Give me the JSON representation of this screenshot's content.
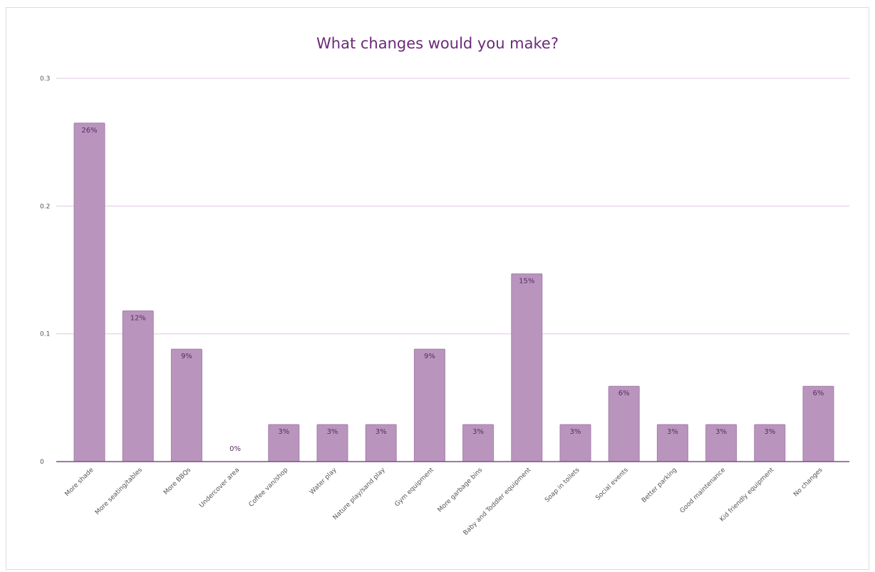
{
  "chart_data": {
    "type": "bar",
    "title": "What changes would you make?",
    "xlabel": "",
    "ylabel": "",
    "ylim": [
      0,
      0.3
    ],
    "yticks": [
      {
        "value": 0,
        "label": "0"
      },
      {
        "value": 0.1,
        "label": "0.1"
      },
      {
        "value": 0.2,
        "label": "0.2"
      },
      {
        "value": 0.3,
        "label": "0.3"
      }
    ],
    "grid": true,
    "categories": [
      "More shade",
      "More seating/tables",
      "More BBQs",
      "Undercover area",
      "Coffee van/shop",
      "Water play",
      "Nature play/sand play",
      "Gym equipment",
      "More garbage bins",
      "Baby and Toddler equipment",
      "Soap in toilets",
      "Social events",
      "Better parking",
      "Good maintenance",
      "Kid friendly equipment",
      "No changes"
    ],
    "values": [
      0.265,
      0.118,
      0.088,
      0.0,
      0.029,
      0.029,
      0.029,
      0.088,
      0.029,
      0.147,
      0.029,
      0.059,
      0.029,
      0.029,
      0.029,
      0.059
    ],
    "data_labels": [
      "26%",
      "12%",
      "9%",
      "0%",
      "3%",
      "3%",
      "3%",
      "9%",
      "3%",
      "15%",
      "3%",
      "6%",
      "3%",
      "3%",
      "3%",
      "6%"
    ],
    "colors": {
      "bar": "#b995bd",
      "bar_edge": "#a77fab",
      "gridline": "#e8d8ea",
      "axis": "#7b4f86",
      "title": "#6b2a78",
      "data_label": "#5a2a63"
    }
  }
}
